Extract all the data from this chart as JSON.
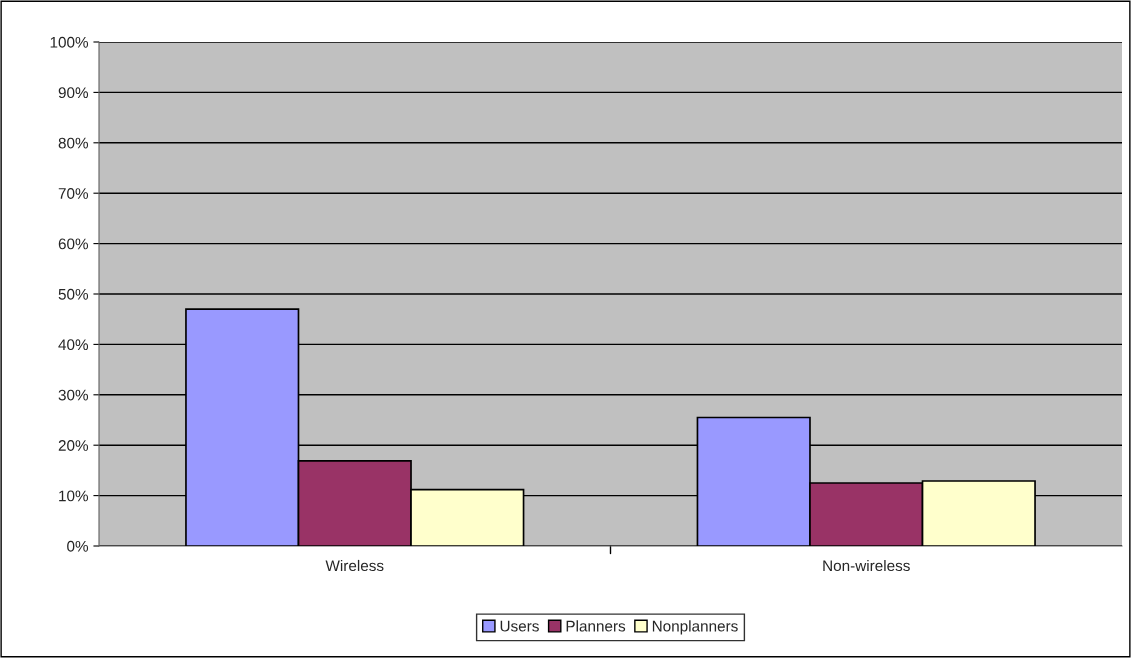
{
  "chart_data": {
    "type": "bar",
    "categories": [
      "Wireless",
      "Non-wireless"
    ],
    "series": [
      {
        "name": "Users",
        "color": "#9999ff",
        "values": [
          47.0,
          25.5
        ]
      },
      {
        "name": "Planners",
        "color": "#993366",
        "values": [
          16.9,
          12.5
        ]
      },
      {
        "name": "Nonplanners",
        "color": "#ffffcc",
        "values": [
          11.2,
          12.9
        ]
      }
    ],
    "ylim": [
      0,
      100
    ],
    "yticks": [
      {
        "value": 0,
        "label": "0%"
      },
      {
        "value": 10,
        "label": "10%"
      },
      {
        "value": 20,
        "label": "20%"
      },
      {
        "value": 30,
        "label": "30%"
      },
      {
        "value": 40,
        "label": "40%"
      },
      {
        "value": 50,
        "label": "50%"
      },
      {
        "value": 60,
        "label": "60%"
      },
      {
        "value": 70,
        "label": "70%"
      },
      {
        "value": 80,
        "label": "80%"
      },
      {
        "value": 90,
        "label": "90%"
      },
      {
        "value": 100,
        "label": "100%"
      }
    ],
    "grid": "y",
    "legend": "bottom"
  }
}
